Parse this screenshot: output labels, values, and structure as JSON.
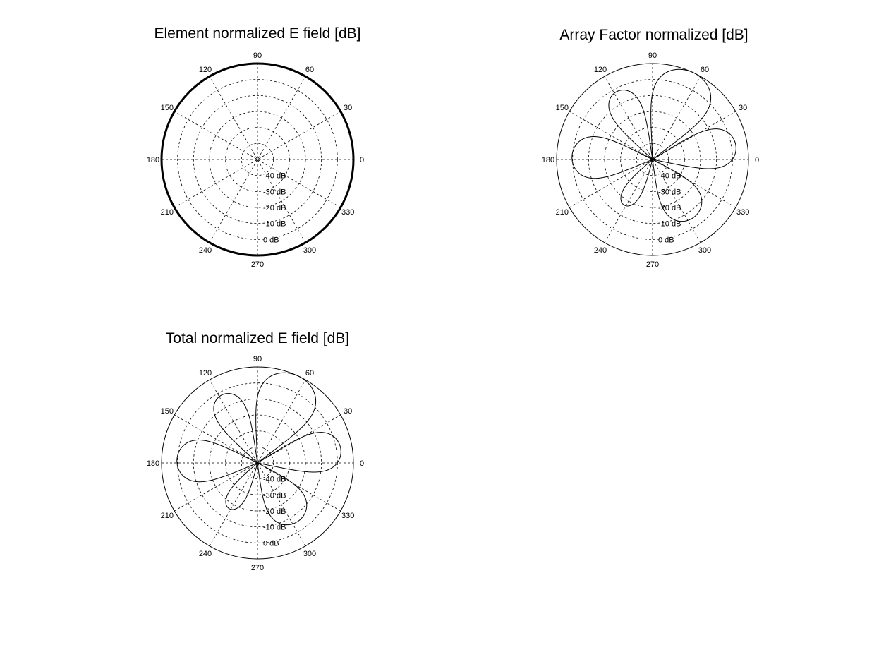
{
  "chart_data": [
    {
      "type": "polar",
      "title": "Element normalized E field [dB]",
      "angle_ticks": [
        "0",
        "30",
        "60",
        "90",
        "120",
        "150",
        "180",
        "210",
        "240",
        "270",
        "300",
        "330"
      ],
      "radial_ticks": [
        "-40 dB",
        "-30 dB",
        "-20 dB",
        "-10 dB",
        "0 dB"
      ],
      "rlim_db": [
        -50,
        0
      ],
      "grid": true,
      "series": [
        {
          "pattern": "isotropic",
          "peak_db": 0,
          "line": "thick"
        }
      ]
    },
    {
      "type": "polar",
      "title": "Array Factor normalized [dB]",
      "angle_ticks": [
        "0",
        "30",
        "60",
        "90",
        "120",
        "150",
        "180",
        "210",
        "240",
        "270",
        "300",
        "330"
      ],
      "radial_ticks": [
        "-40 dB",
        "-30 dB",
        "-20 dB",
        "-10 dB",
        "0 dB"
      ],
      "rlim_db": [
        -50,
        0
      ],
      "grid": true,
      "series": [
        {
          "pattern": "lobes",
          "lobes": [
            {
              "center_deg": 10,
              "peak_db": -6,
              "half_width_deg": 22
            },
            {
              "center_deg": 65,
              "peak_db": 0,
              "half_width_deg": 28
            },
            {
              "center_deg": 118,
              "peak_db": -10,
              "half_width_deg": 20
            },
            {
              "center_deg": 178,
              "peak_db": -8,
              "half_width_deg": 25
            },
            {
              "center_deg": 238,
              "peak_db": -22,
              "half_width_deg": 18
            },
            {
              "center_deg": 305,
              "peak_db": -13,
              "half_width_deg": 28
            }
          ]
        }
      ]
    },
    {
      "type": "polar",
      "title": "Total normalized E field [dB]",
      "angle_ticks": [
        "0",
        "30",
        "60",
        "90",
        "120",
        "150",
        "180",
        "210",
        "240",
        "270",
        "300",
        "330"
      ],
      "radial_ticks": [
        "-40 dB",
        "-30 dB",
        "-20 dB",
        "-10 dB",
        "0 dB"
      ],
      "rlim_db": [
        -50,
        0
      ],
      "grid": true,
      "series": [
        {
          "pattern": "lobes",
          "lobes": [
            {
              "center_deg": 10,
              "peak_db": -6,
              "half_width_deg": 22
            },
            {
              "center_deg": 65,
              "peak_db": 0,
              "half_width_deg": 28
            },
            {
              "center_deg": 118,
              "peak_db": -10,
              "half_width_deg": 20
            },
            {
              "center_deg": 178,
              "peak_db": -8,
              "half_width_deg": 25
            },
            {
              "center_deg": 238,
              "peak_db": -22,
              "half_width_deg": 18
            },
            {
              "center_deg": 305,
              "peak_db": -13,
              "half_width_deg": 28
            }
          ]
        }
      ]
    }
  ]
}
